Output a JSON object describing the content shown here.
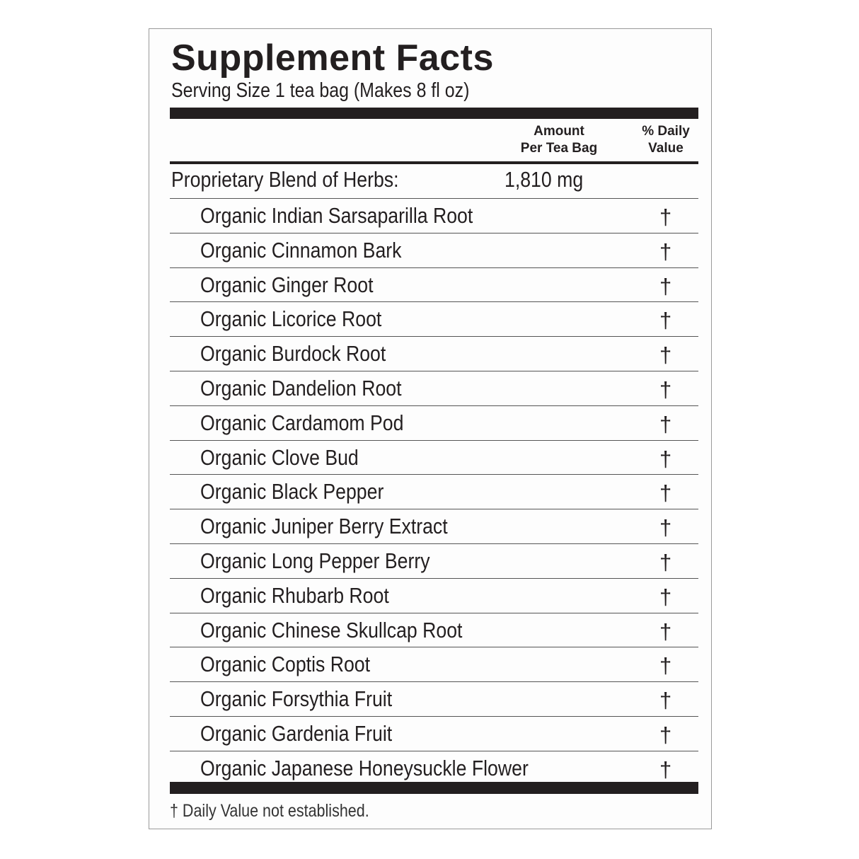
{
  "title": "Supplement Facts",
  "serving_size": "Serving Size 1 tea bag (Makes 8 fl oz)",
  "header": {
    "amount_line1": "Amount",
    "amount_line2": "Per Tea Bag",
    "dv_line1": "% Daily",
    "dv_line2": "Value"
  },
  "blend": {
    "label": "Proprietary Blend of Herbs:",
    "amount": "1,810 mg"
  },
  "ingredients": [
    {
      "name": "Organic Indian Sarsaparilla Root",
      "dv": "†"
    },
    {
      "name": "Organic Cinnamon Bark",
      "dv": "†"
    },
    {
      "name": "Organic Ginger Root",
      "dv": "†"
    },
    {
      "name": "Organic Licorice Root",
      "dv": "†"
    },
    {
      "name": "Organic Burdock Root",
      "dv": "†"
    },
    {
      "name": "Organic Dandelion Root",
      "dv": "†"
    },
    {
      "name": "Organic Cardamom Pod",
      "dv": "†"
    },
    {
      "name": "Organic Clove Bud",
      "dv": "†"
    },
    {
      "name": "Organic Black Pepper",
      "dv": "†"
    },
    {
      "name": "Organic Juniper Berry Extract",
      "dv": "†"
    },
    {
      "name": "Organic Long Pepper Berry",
      "dv": "†"
    },
    {
      "name": "Organic Rhubarb Root",
      "dv": "†"
    },
    {
      "name": "Organic Chinese Skullcap Root",
      "dv": "†"
    },
    {
      "name": "Organic Coptis Root",
      "dv": "†"
    },
    {
      "name": "Organic Forsythia Fruit",
      "dv": "†"
    },
    {
      "name": "Organic Gardenia Fruit",
      "dv": "†"
    },
    {
      "name": "Organic Japanese Honeysuckle Flower",
      "dv": "†"
    }
  ],
  "footnote": "† Daily Value not established."
}
